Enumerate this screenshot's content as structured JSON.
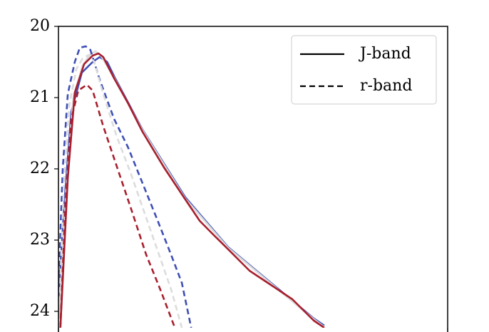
{
  "chart_data": {
    "type": "line",
    "ylim": [
      24.23,
      20
    ],
    "yticks": [
      20,
      21,
      22,
      23,
      24
    ],
    "xlim": [
      0,
      10
    ],
    "legend": [
      {
        "label": "J-band",
        "dash": false
      },
      {
        "label": "r-band",
        "dash": true
      }
    ],
    "series": [
      {
        "color": "#3f4fb5",
        "dash": false,
        "x": [
          0,
          0.15,
          0.33,
          0.6,
          0.88,
          1.06,
          1.25,
          1.43,
          2.16,
          3.26,
          4.36,
          5.46,
          6.56,
          6.83
        ],
        "values": [
          23.83,
          22.5,
          21.2,
          20.65,
          20.5,
          20.43,
          20.5,
          20.7,
          21.45,
          22.4,
          23.1,
          23.6,
          24.1,
          24.2
        ]
      },
      {
        "color": "#dcdcdc",
        "dash": false,
        "x": [
          0.02,
          0.2,
          0.38,
          0.62,
          0.8,
          0.95,
          1.1,
          1.43,
          2.16,
          3.26,
          4.36,
          5.46,
          6.56,
          6.83
        ],
        "values": [
          24.1,
          22.3,
          21.0,
          20.55,
          20.4,
          20.35,
          20.42,
          20.72,
          21.46,
          22.42,
          23.11,
          23.61,
          24.11,
          24.22
        ]
      },
      {
        "color": "#a81f2d",
        "dash": false,
        "x": [
          0.05,
          0.24,
          0.42,
          0.66,
          0.88,
          1.03,
          1.15,
          1.43,
          1.79,
          2.16,
          2.71,
          3.26,
          3.63,
          3.99,
          4.36,
          4.91,
          5.46,
          6.01,
          6.56,
          6.83
        ],
        "values": [
          24.23,
          22.13,
          20.93,
          20.53,
          20.41,
          20.38,
          20.43,
          20.73,
          21.08,
          21.48,
          21.98,
          22.43,
          22.73,
          22.93,
          23.13,
          23.43,
          23.63,
          23.83,
          24.13,
          24.23
        ]
      },
      {
        "color": "#3f4fb5",
        "dash": true,
        "x": [
          0,
          0.11,
          0.24,
          0.42,
          0.55,
          0.7,
          0.82,
          1.06,
          1.43,
          1.79,
          2.16,
          2.53,
          2.89,
          3.17,
          3.41
        ],
        "values": [
          23.63,
          22.0,
          20.95,
          20.5,
          20.3,
          20.28,
          20.33,
          20.75,
          21.3,
          21.7,
          22.2,
          22.7,
          23.2,
          23.6,
          24.23
        ]
      },
      {
        "color": "#dcdcdc",
        "dash": true,
        "x": [
          0.02,
          0.14,
          0.28,
          0.46,
          0.62,
          0.78,
          0.92,
          1.15,
          1.5,
          1.85,
          2.2,
          2.55,
          2.9,
          3.17
        ],
        "values": [
          24.0,
          22.2,
          21.1,
          20.6,
          20.45,
          20.4,
          20.5,
          20.95,
          21.55,
          22.05,
          22.6,
          23.15,
          23.7,
          24.23
        ]
      },
      {
        "color": "#a81f2d",
        "dash": true,
        "x": [
          0.05,
          0.18,
          0.33,
          0.51,
          0.73,
          0.88,
          1.15,
          1.52,
          1.89,
          2.25,
          2.62,
          2.99
        ],
        "values": [
          24.23,
          22.5,
          21.3,
          20.9,
          20.82,
          20.9,
          21.4,
          22.0,
          22.6,
          23.2,
          23.7,
          24.23
        ]
      }
    ]
  }
}
